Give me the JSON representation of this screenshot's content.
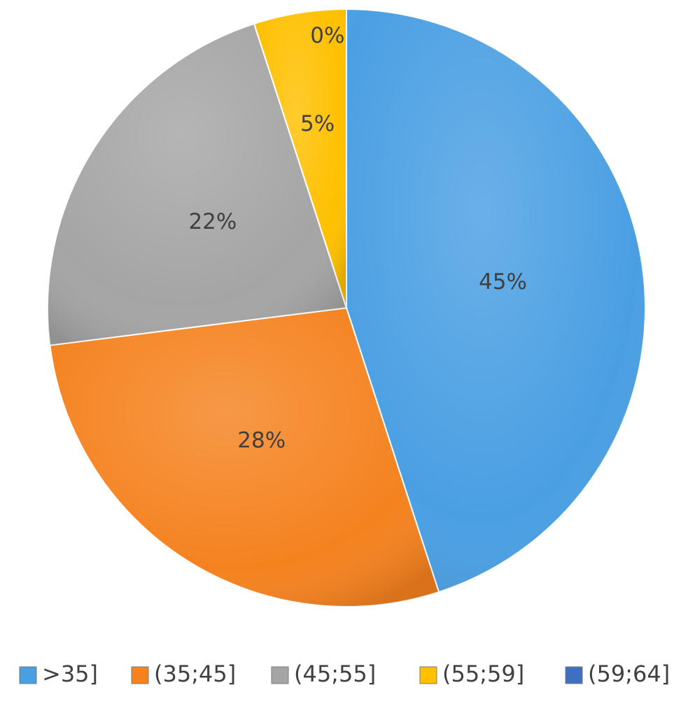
{
  "chart_data": {
    "type": "pie",
    "categories": [
      ">35]",
      "(35;45]",
      "(45;55]",
      "(55;59]",
      "(59;64]"
    ],
    "values": [
      45,
      28,
      22,
      5,
      0
    ],
    "data_labels": [
      "45%",
      "28%",
      "22%",
      "5%",
      "0%"
    ],
    "colors": [
      "#4a9fe3",
      "#f5821f",
      "#a5a5a5",
      "#ffc000",
      "#3d6fc2"
    ],
    "start_angle_deg": 0,
    "direction": "clockwise",
    "legend_position": "bottom"
  }
}
